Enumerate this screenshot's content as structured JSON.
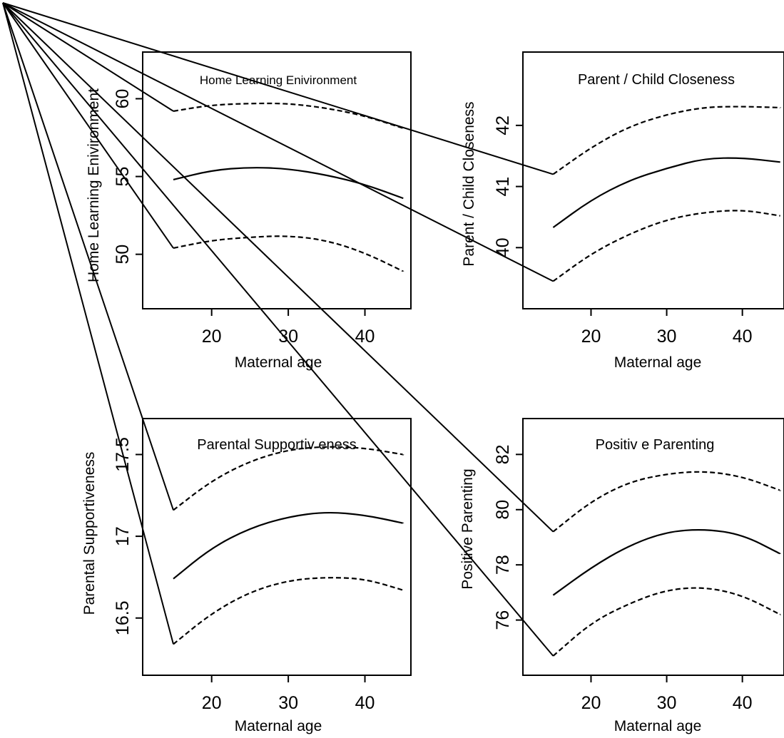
{
  "chart_data": [
    {
      "type": "line",
      "title": "Home Learning Enivironment",
      "xlabel": "Maternal age",
      "ylabel": "Home Learning Enivironment",
      "xlim": [
        11,
        46
      ],
      "ylim": [
        46.5,
        63
      ],
      "xticks": [
        20,
        30,
        40
      ],
      "yticks": [
        50,
        55,
        60
      ],
      "ytick_labels": [
        "50",
        "55",
        "60"
      ],
      "grid": false,
      "x": [
        15,
        20,
        25,
        30,
        35,
        40,
        45
      ],
      "series": [
        {
          "role": "estimate",
          "style": "solid",
          "values": [
            54.8,
            55.4,
            55.6,
            55.5,
            55.1,
            54.5,
            53.6
          ]
        },
        {
          "role": "upper-bound",
          "style": "dashed",
          "values": [
            59.2,
            59.6,
            59.7,
            59.7,
            59.4,
            58.9,
            58.1
          ]
        },
        {
          "role": "lower-bound",
          "style": "dashed",
          "values": [
            50.4,
            50.9,
            51.1,
            51.2,
            50.9,
            50.1,
            48.9
          ]
        }
      ]
    },
    {
      "type": "line",
      "title": "Parent / Child Closeness",
      "xlabel": "Maternal age",
      "ylabel": "Parent / Child Closeness",
      "xlim": [
        11,
        45.5
      ],
      "ylim": [
        39.0,
        43.2
      ],
      "xticks": [
        20,
        30,
        40
      ],
      "yticks": [
        40,
        41,
        42
      ],
      "ytick_labels": [
        "40",
        "41",
        "42"
      ],
      "grid": false,
      "x": [
        15,
        20,
        25,
        30,
        35,
        40,
        45
      ],
      "series": [
        {
          "role": "estimate",
          "style": "solid",
          "values": [
            40.33,
            40.78,
            41.1,
            41.3,
            41.46,
            41.47,
            41.4
          ]
        },
        {
          "role": "upper-bound",
          "style": "dashed",
          "values": [
            41.2,
            41.64,
            41.98,
            42.18,
            42.3,
            42.31,
            42.29
          ]
        },
        {
          "role": "lower-bound",
          "style": "dashed",
          "values": [
            39.45,
            39.9,
            40.22,
            40.46,
            40.58,
            40.62,
            40.52
          ]
        }
      ]
    },
    {
      "type": "line",
      "title": "Parental Supportiv eness",
      "xlabel": "Maternal age",
      "ylabel": "Parental Supportiveness",
      "xlim": [
        11,
        46
      ],
      "ylim": [
        16.15,
        17.72
      ],
      "xticks": [
        20,
        30,
        40
      ],
      "yticks": [
        16.5,
        17,
        17.5
      ],
      "ytick_labels": [
        "16.5",
        "17",
        "17.5"
      ],
      "grid": false,
      "x": [
        15,
        20,
        25,
        30,
        35,
        40,
        45
      ],
      "series": [
        {
          "role": "estimate",
          "style": "solid",
          "values": [
            16.74,
            16.93,
            17.05,
            17.12,
            17.15,
            17.13,
            17.08
          ]
        },
        {
          "role": "upper-bound",
          "style": "dashed",
          "values": [
            17.16,
            17.34,
            17.46,
            17.53,
            17.55,
            17.54,
            17.5
          ]
        },
        {
          "role": "lower-bound",
          "style": "dashed",
          "values": [
            16.34,
            16.53,
            16.66,
            16.73,
            16.75,
            16.74,
            16.67
          ]
        }
      ]
    },
    {
      "type": "line",
      "title": "Positiv e Parenting",
      "xlabel": "Maternal age",
      "ylabel": "Positive Parenting",
      "xlim": [
        11,
        45.5
      ],
      "ylim": [
        74.0,
        83.3
      ],
      "xticks": [
        20,
        30,
        40
      ],
      "yticks": [
        76,
        78,
        80,
        82
      ],
      "ytick_labels": [
        "76",
        "78",
        "80",
        "82"
      ],
      "grid": false,
      "x": [
        15,
        20,
        25,
        30,
        35,
        40,
        45
      ],
      "series": [
        {
          "role": "estimate",
          "style": "solid",
          "values": [
            76.9,
            77.9,
            78.7,
            79.2,
            79.3,
            79.1,
            78.4
          ]
        },
        {
          "role": "upper-bound",
          "style": "dashed",
          "values": [
            79.2,
            80.3,
            81.0,
            81.3,
            81.4,
            81.2,
            80.7
          ]
        },
        {
          "role": "lower-bound",
          "style": "dashed",
          "values": [
            74.7,
            75.9,
            76.6,
            77.1,
            77.2,
            76.9,
            76.2
          ]
        }
      ]
    }
  ]
}
